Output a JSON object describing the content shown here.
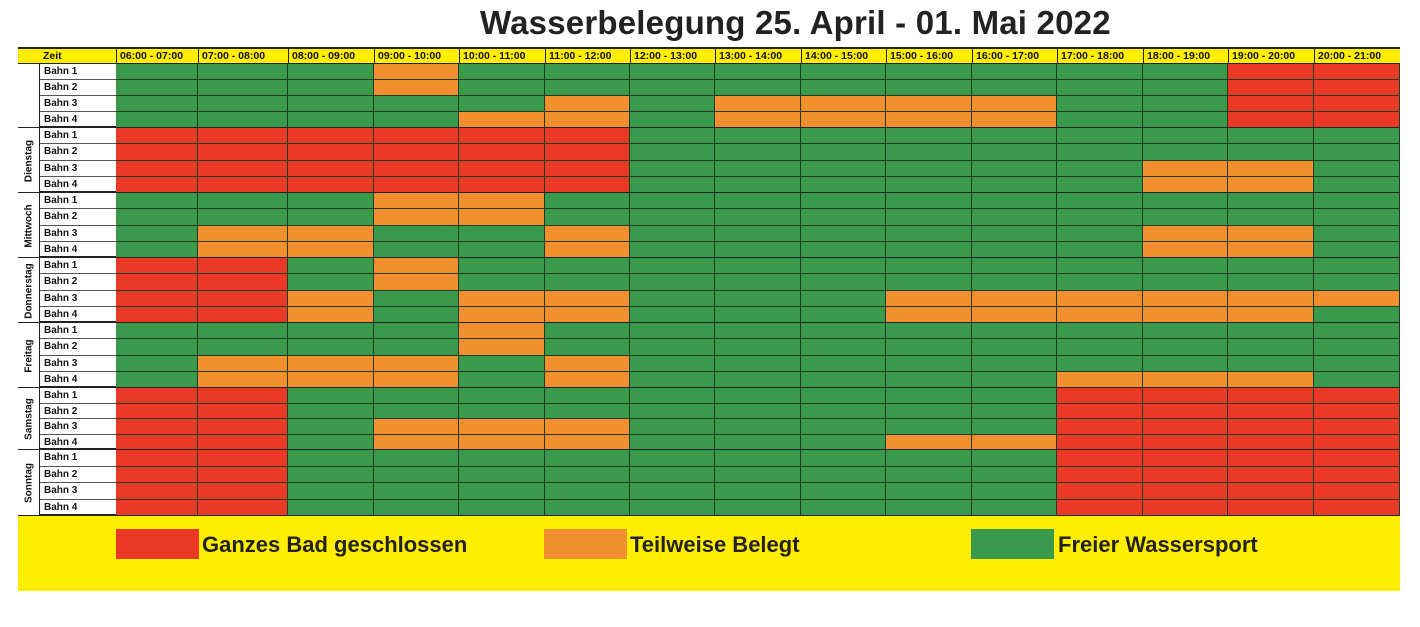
{
  "title": "Wasserbelegung 25. April - 01. Mai 2022",
  "header_label": "Zeit",
  "time_slots": [
    "06:00 - 07:00",
    "07:00 - 08:00",
    "08:00 - 09:00",
    "09:00 - 10:00",
    "10:00 - 11:00",
    "11:00 - 12:00",
    "12:00 - 13:00",
    "13:00 - 14:00",
    "14:00 - 15:00",
    "15:00 - 16:00",
    "16:00 - 17:00",
    "17:00 - 18:00",
    "18:00 - 19:00",
    "19:00 - 20:00",
    "20:00 - 21:00"
  ],
  "colors": {
    "R": "#ea3a26",
    "O": "#f28f2f",
    "G": "#389a4a",
    "header": "#ffee00"
  },
  "days": [
    {
      "name": "",
      "lanes": [
        {
          "label": "Bahn 1",
          "slots": "GGGOGGGGGGGGGRR"
        },
        {
          "label": "Bahn 2",
          "slots": "GGGOGGGGGGGGGRR"
        },
        {
          "label": "Bahn 3",
          "slots": "GGGGGOGOOOOGGRR"
        },
        {
          "label": "Bahn 4",
          "slots": "GGGGOOGOOOOGGRR"
        }
      ]
    },
    {
      "name": "Dienstag",
      "lanes": [
        {
          "label": "Bahn 1",
          "slots": "RRRRRRGGGGGGGGG"
        },
        {
          "label": "Bahn 2",
          "slots": "RRRRRRGGGGGGGGG"
        },
        {
          "label": "Bahn 3",
          "slots": "RRRRRRGGGGGGOOG"
        },
        {
          "label": "Bahn 4",
          "slots": "RRRRRRGGGGGGOOG"
        }
      ]
    },
    {
      "name": "Mittwoch",
      "lanes": [
        {
          "label": "Bahn 1",
          "slots": "GGGOOGGGGGGGGGG"
        },
        {
          "label": "Bahn 2",
          "slots": "GGGOOGGGGGGGGGG"
        },
        {
          "label": "Bahn 3",
          "slots": "GOOGGOGGGGGGOOG"
        },
        {
          "label": "Bahn 4",
          "slots": "GOOGGOGGGGGGOOG"
        }
      ]
    },
    {
      "name": "Donnerstag",
      "lanes": [
        {
          "label": "Bahn 1",
          "slots": "RRGOGGGGGGGGGGG"
        },
        {
          "label": "Bahn 2",
          "slots": "RRGOGGGGGGGGGGG"
        },
        {
          "label": "Bahn 3",
          "slots": "RROGOOGGGOOOOOO"
        },
        {
          "label": "Bahn 4",
          "slots": "RROGOOGGGOOOOOG"
        }
      ]
    },
    {
      "name": "Freitag",
      "lanes": [
        {
          "label": "Bahn 1",
          "slots": "GGGGOGGGGGGGGGG"
        },
        {
          "label": "Bahn 2",
          "slots": "GGGGOGGGGGGGGGG"
        },
        {
          "label": "Bahn 3",
          "slots": "GOOOGOGGGGGGGGG"
        },
        {
          "label": "Bahn 4",
          "slots": "GOOOGOGGGGGOOOG"
        }
      ]
    },
    {
      "name": "Samstag",
      "lanes": [
        {
          "label": "Bahn 1",
          "slots": "RRGGGGGGGGGRRRR"
        },
        {
          "label": "Bahn 2",
          "slots": "RRGGGGGGGGGRRRR"
        },
        {
          "label": "Bahn 3",
          "slots": "RRGOOOGGGGGRRRR"
        },
        {
          "label": "Bahn 4",
          "slots": "RRGOOOGGGOORRRR"
        }
      ]
    },
    {
      "name": "Sonntag",
      "lanes": [
        {
          "label": "Bahn 1",
          "slots": "RRGGGGGGGGGRRRR"
        },
        {
          "label": "Bahn 2",
          "slots": "RRGGGGGGGGGRRRR"
        },
        {
          "label": "Bahn 3",
          "slots": "RRGGGGGGGGGRRRR"
        },
        {
          "label": "Bahn 4",
          "slots": "RRGGGGGGGGGRRRR"
        }
      ]
    }
  ],
  "legend": [
    {
      "code": "R",
      "label": "Ganzes Bad geschlossen"
    },
    {
      "code": "O",
      "label": "Teilweise Belegt"
    },
    {
      "code": "G",
      "label": "Freier Wassersport"
    }
  ]
}
